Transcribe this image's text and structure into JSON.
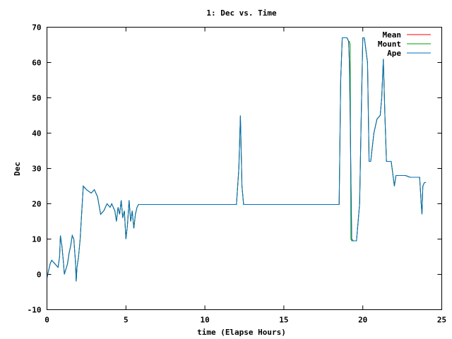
{
  "chart_data": {
    "type": "line",
    "title": "1: Dec vs. Time",
    "xlabel": "time (Elapse Hours)",
    "ylabel": "Dec",
    "xlim": [
      0,
      25
    ],
    "ylim": [
      -10,
      70
    ],
    "xticks": [
      0,
      5,
      10,
      15,
      20,
      25
    ],
    "yticks": [
      -10,
      0,
      10,
      20,
      30,
      40,
      50,
      60,
      70
    ],
    "grid": false,
    "legend_position": "top-right",
    "series": [
      {
        "name": "Mean",
        "color": "#ff0000",
        "x": [
          0,
          0.1,
          0.2,
          0.3,
          0.5,
          0.7,
          0.8,
          0.85,
          0.95,
          1.05,
          1.1,
          1.3,
          1.4,
          1.5,
          1.6,
          1.7,
          1.8,
          1.85,
          1.9,
          2.0,
          2.1,
          2.3,
          2.5,
          2.8,
          3.0,
          3.2,
          3.4,
          3.6,
          3.8,
          4.0,
          4.1,
          4.3,
          4.4,
          4.5,
          4.6,
          4.7,
          4.8,
          4.9,
          5.0,
          5.1,
          5.2,
          5.3,
          5.4,
          5.5,
          5.6,
          5.7,
          5.8,
          6.0,
          8,
          10,
          12,
          12.15,
          12.25,
          12.35,
          12.45,
          12.6,
          14,
          16,
          18.5,
          18.6,
          18.7,
          19.0,
          19.1,
          19.15,
          19.2,
          19.3,
          19.4,
          19.6,
          19.8,
          19.9,
          20.0,
          20.1,
          20.3,
          20.4,
          20.5,
          20.7,
          20.9,
          21.1,
          21.2,
          21.3,
          21.4,
          21.5,
          21.6,
          21.8,
          22.0,
          22.1,
          22.3,
          22.5,
          22.7,
          23.0,
          23.3,
          23.6,
          23.7,
          23.75,
          23.8,
          23.9,
          24.0
        ],
        "y": [
          -1,
          1,
          3,
          4,
          3,
          2,
          5,
          11,
          8,
          3,
          0,
          3,
          6,
          8,
          11,
          10,
          4,
          -2,
          2,
          5,
          10,
          25,
          24,
          23,
          24,
          22,
          17,
          18,
          20,
          19,
          20,
          18,
          15,
          19,
          17,
          21,
          16,
          18,
          10,
          14,
          21,
          15,
          18,
          13,
          17,
          19,
          19.8,
          19.8,
          19.8,
          19.8,
          19.8,
          30,
          45,
          25,
          19.8,
          19.8,
          19.8,
          19.8,
          19.8,
          55,
          67,
          67,
          66,
          60,
          45,
          10,
          9.5,
          9.5,
          20,
          45,
          67,
          67,
          60,
          32,
          32,
          40,
          44,
          45,
          50,
          61,
          45,
          32,
          32,
          32,
          25,
          28,
          28,
          28,
          28,
          27.5,
          27.5,
          27.5,
          20,
          17,
          25,
          26,
          26
        ]
      },
      {
        "name": "Mount",
        "color": "#00a000",
        "x": [
          0,
          0.1,
          0.2,
          0.3,
          0.5,
          0.7,
          0.8,
          0.85,
          0.95,
          1.05,
          1.1,
          1.3,
          1.4,
          1.5,
          1.6,
          1.7,
          1.8,
          1.85,
          1.9,
          2.0,
          2.1,
          2.3,
          2.5,
          2.8,
          3.0,
          3.2,
          3.4,
          3.6,
          3.8,
          4.0,
          4.1,
          4.3,
          4.4,
          4.5,
          4.6,
          4.7,
          4.8,
          4.9,
          5.0,
          5.1,
          5.2,
          5.3,
          5.4,
          5.5,
          5.6,
          5.7,
          5.8,
          6.0,
          8,
          10,
          12,
          12.15,
          12.25,
          12.35,
          12.45,
          12.6,
          14,
          16,
          18.5,
          18.6,
          18.7,
          19.0,
          19.1,
          19.15,
          19.2,
          19.25,
          19.3,
          19.35,
          19.4,
          19.6,
          19.8,
          19.9,
          20.0,
          20.1,
          20.3,
          20.4,
          20.5,
          20.7,
          20.9,
          21.1,
          21.2,
          21.3,
          21.4,
          21.5,
          21.6,
          21.8,
          22.0,
          22.1,
          22.3,
          22.5,
          22.7,
          23.0,
          23.3,
          23.6,
          23.7,
          23.75,
          23.8,
          23.9,
          24.0
        ],
        "y": [
          -1,
          1,
          3,
          4,
          3,
          2,
          5,
          11,
          8,
          3,
          0,
          3,
          6,
          8,
          11,
          10,
          4,
          -2,
          2,
          5,
          10,
          25,
          24,
          23,
          24,
          22,
          17,
          18,
          20,
          19,
          20,
          18,
          15,
          19,
          17,
          21,
          16,
          18,
          10,
          14,
          21,
          15,
          18,
          13,
          17,
          19,
          19.8,
          19.8,
          19.8,
          19.8,
          19.8,
          30,
          45,
          25,
          19.8,
          19.8,
          19.8,
          19.8,
          19.8,
          55,
          67,
          67,
          66,
          66,
          65,
          10,
          9.5,
          9.5,
          9.5,
          9.5,
          20,
          45,
          67,
          67,
          60,
          32,
          32,
          40,
          44,
          45,
          50,
          61,
          45,
          32,
          32,
          32,
          25,
          28,
          28,
          28,
          28,
          27.5,
          27.5,
          27.5,
          20,
          17,
          25,
          26,
          26
        ]
      },
      {
        "name": "Ape",
        "color": "#0070c0",
        "x": [
          0,
          0.1,
          0.2,
          0.3,
          0.5,
          0.7,
          0.8,
          0.85,
          0.95,
          1.05,
          1.1,
          1.3,
          1.4,
          1.5,
          1.6,
          1.7,
          1.8,
          1.85,
          1.9,
          2.0,
          2.1,
          2.3,
          2.5,
          2.8,
          3.0,
          3.2,
          3.4,
          3.6,
          3.8,
          4.0,
          4.1,
          4.3,
          4.4,
          4.5,
          4.6,
          4.7,
          4.8,
          4.9,
          5.0,
          5.1,
          5.2,
          5.3,
          5.4,
          5.5,
          5.6,
          5.7,
          5.8,
          6.0,
          8,
          10,
          12,
          12.15,
          12.25,
          12.35,
          12.45,
          12.6,
          14,
          16,
          18.5,
          18.6,
          18.7,
          19.0,
          19.1,
          19.15,
          19.2,
          19.3,
          19.4,
          19.6,
          19.8,
          19.9,
          20.0,
          20.1,
          20.3,
          20.4,
          20.5,
          20.7,
          20.9,
          21.1,
          21.2,
          21.3,
          21.4,
          21.5,
          21.6,
          21.8,
          22.0,
          22.1,
          22.3,
          22.5,
          22.7,
          23.0,
          23.3,
          23.6,
          23.7,
          23.75,
          23.8,
          23.9,
          24.0
        ],
        "y": [
          -1,
          1,
          3,
          4,
          3,
          2,
          5,
          11,
          8,
          3,
          0,
          3,
          6,
          8,
          11,
          10,
          4,
          -2,
          2,
          5,
          10,
          25,
          24,
          23,
          24,
          22,
          17,
          18,
          20,
          19,
          20,
          18,
          15,
          19,
          17,
          21,
          16,
          18,
          10,
          14,
          21,
          15,
          18,
          13,
          17,
          19,
          19.8,
          19.8,
          19.8,
          19.8,
          19.8,
          30,
          45,
          25,
          19.8,
          19.8,
          19.8,
          19.8,
          19.8,
          55,
          67,
          67,
          66,
          60,
          45,
          10,
          9.5,
          9.5,
          20,
          45,
          67,
          67,
          60,
          32,
          32,
          40,
          44,
          45,
          50,
          61,
          45,
          32,
          32,
          32,
          25,
          28,
          28,
          28,
          28,
          27.5,
          27.5,
          27.5,
          20,
          17,
          25,
          26,
          26
        ]
      }
    ]
  }
}
